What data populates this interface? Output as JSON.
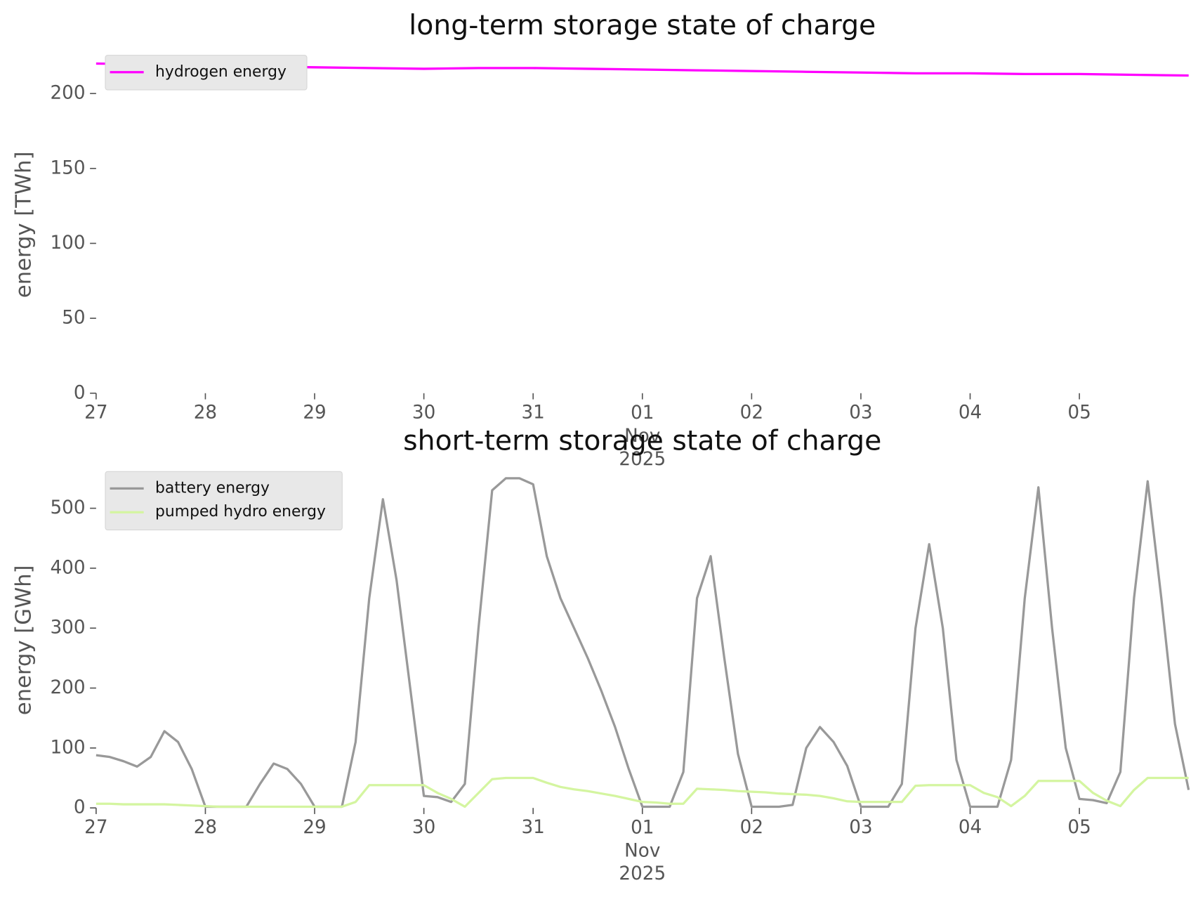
{
  "chart_data": [
    {
      "type": "line",
      "title": "long-term storage state of charge",
      "ylabel": "energy [TWh]",
      "legend": "upper left",
      "x": [
        0,
        0.5,
        1,
        1.5,
        2,
        2.5,
        3,
        3.5,
        4,
        4.5,
        5,
        5.5,
        6,
        6.5,
        7,
        7.5,
        8,
        8.5,
        9,
        9.5,
        10
      ],
      "series": [
        {
          "name": "hydrogen energy",
          "color": "#ff00ff",
          "values": [
            220,
            219.5,
            218.5,
            218,
            217.5,
            217,
            216.5,
            217,
            217,
            216.5,
            216,
            215.5,
            215,
            214.5,
            214,
            213.5,
            213.5,
            213,
            213,
            212.5,
            212
          ]
        }
      ],
      "xlim": [
        0,
        10
      ],
      "xticks": [
        {
          "value": 0,
          "label": "27"
        },
        {
          "value": 1,
          "label": "28"
        },
        {
          "value": 2,
          "label": "29"
        },
        {
          "value": 3,
          "label": "30"
        },
        {
          "value": 4,
          "label": "31"
        },
        {
          "value": 5,
          "label": "01\nNov\n2025"
        },
        {
          "value": 6,
          "label": "02"
        },
        {
          "value": 7,
          "label": "03"
        },
        {
          "value": 8,
          "label": "04"
        },
        {
          "value": 9,
          "label": "05"
        }
      ],
      "ylim": [
        0,
        225
      ],
      "yticks": [
        0,
        50,
        100,
        150,
        200
      ]
    },
    {
      "type": "line",
      "title": "short-term storage state of charge",
      "ylabel": "energy [GWh]",
      "legend": "upper left",
      "x": [
        0,
        0.125,
        0.25,
        0.375,
        0.5,
        0.625,
        0.75,
        0.875,
        1,
        1.125,
        1.25,
        1.375,
        1.5,
        1.625,
        1.75,
        1.875,
        2,
        2.125,
        2.25,
        2.375,
        2.5,
        2.625,
        2.75,
        2.875,
        3,
        3.125,
        3.25,
        3.375,
        3.5,
        3.625,
        3.75,
        3.875,
        4,
        4.125,
        4.25,
        4.375,
        4.5,
        4.625,
        4.75,
        4.875,
        5,
        5.125,
        5.25,
        5.375,
        5.5,
        5.625,
        5.75,
        5.875,
        6,
        6.125,
        6.25,
        6.375,
        6.5,
        6.625,
        6.75,
        6.875,
        7,
        7.125,
        7.25,
        7.375,
        7.5,
        7.625,
        7.75,
        7.875,
        8,
        8.125,
        8.25,
        8.375,
        8.5,
        8.625,
        8.75,
        8.875,
        9,
        9.125,
        9.25,
        9.375,
        9.5,
        9.625,
        9.75,
        9.875,
        10
      ],
      "series": [
        {
          "name": "battery energy",
          "color": "#999999",
          "values": [
            88,
            85,
            78,
            69,
            85,
            128,
            110,
            65,
            2,
            2,
            2,
            2,
            40,
            74,
            65,
            40,
            2,
            2,
            2,
            110,
            350,
            515,
            380,
            200,
            20,
            18,
            10,
            40,
            300,
            530,
            550,
            550,
            540,
            420,
            350,
            300,
            250,
            195,
            135,
            65,
            2,
            2,
            2,
            60,
            350,
            420,
            250,
            90,
            2,
            2,
            2,
            5,
            100,
            135,
            110,
            70,
            2,
            2,
            2,
            40,
            300,
            440,
            300,
            80,
            2,
            2,
            2,
            80,
            350,
            535,
            300,
            100,
            15,
            13,
            8,
            60,
            350,
            545,
            350,
            140,
            30
          ]
        },
        {
          "name": "pumped hydro energy",
          "color": "#d4f5a0",
          "values": [
            7,
            7,
            6,
            6,
            6,
            6,
            5,
            4,
            3,
            2,
            2,
            2,
            2,
            2,
            2,
            2,
            2,
            2,
            2,
            10,
            38,
            38,
            38,
            38,
            38,
            25,
            15,
            2,
            25,
            48,
            50,
            50,
            50,
            42,
            35,
            31,
            28,
            24,
            20,
            15,
            10,
            9,
            7,
            7,
            32,
            31,
            30,
            28,
            27,
            26,
            24,
            23,
            22,
            20,
            16,
            11,
            10,
            10,
            10,
            10,
            37,
            38,
            38,
            38,
            38,
            25,
            18,
            3,
            20,
            45,
            45,
            45,
            45,
            25,
            12,
            3,
            30,
            50,
            50,
            50,
            50
          ]
        }
      ],
      "xlim": [
        0,
        10
      ],
      "xticks": [
        {
          "value": 0,
          "label": "27"
        },
        {
          "value": 1,
          "label": "28"
        },
        {
          "value": 2,
          "label": "29"
        },
        {
          "value": 3,
          "label": "30"
        },
        {
          "value": 4,
          "label": "31"
        },
        {
          "value": 5,
          "label": "01\nNov\n2025"
        },
        {
          "value": 6,
          "label": "02"
        },
        {
          "value": 7,
          "label": "03"
        },
        {
          "value": 8,
          "label": "04"
        },
        {
          "value": 9,
          "label": "05"
        }
      ],
      "ylim": [
        0,
        560
      ],
      "yticks": [
        0,
        100,
        200,
        300,
        400,
        500
      ]
    }
  ]
}
